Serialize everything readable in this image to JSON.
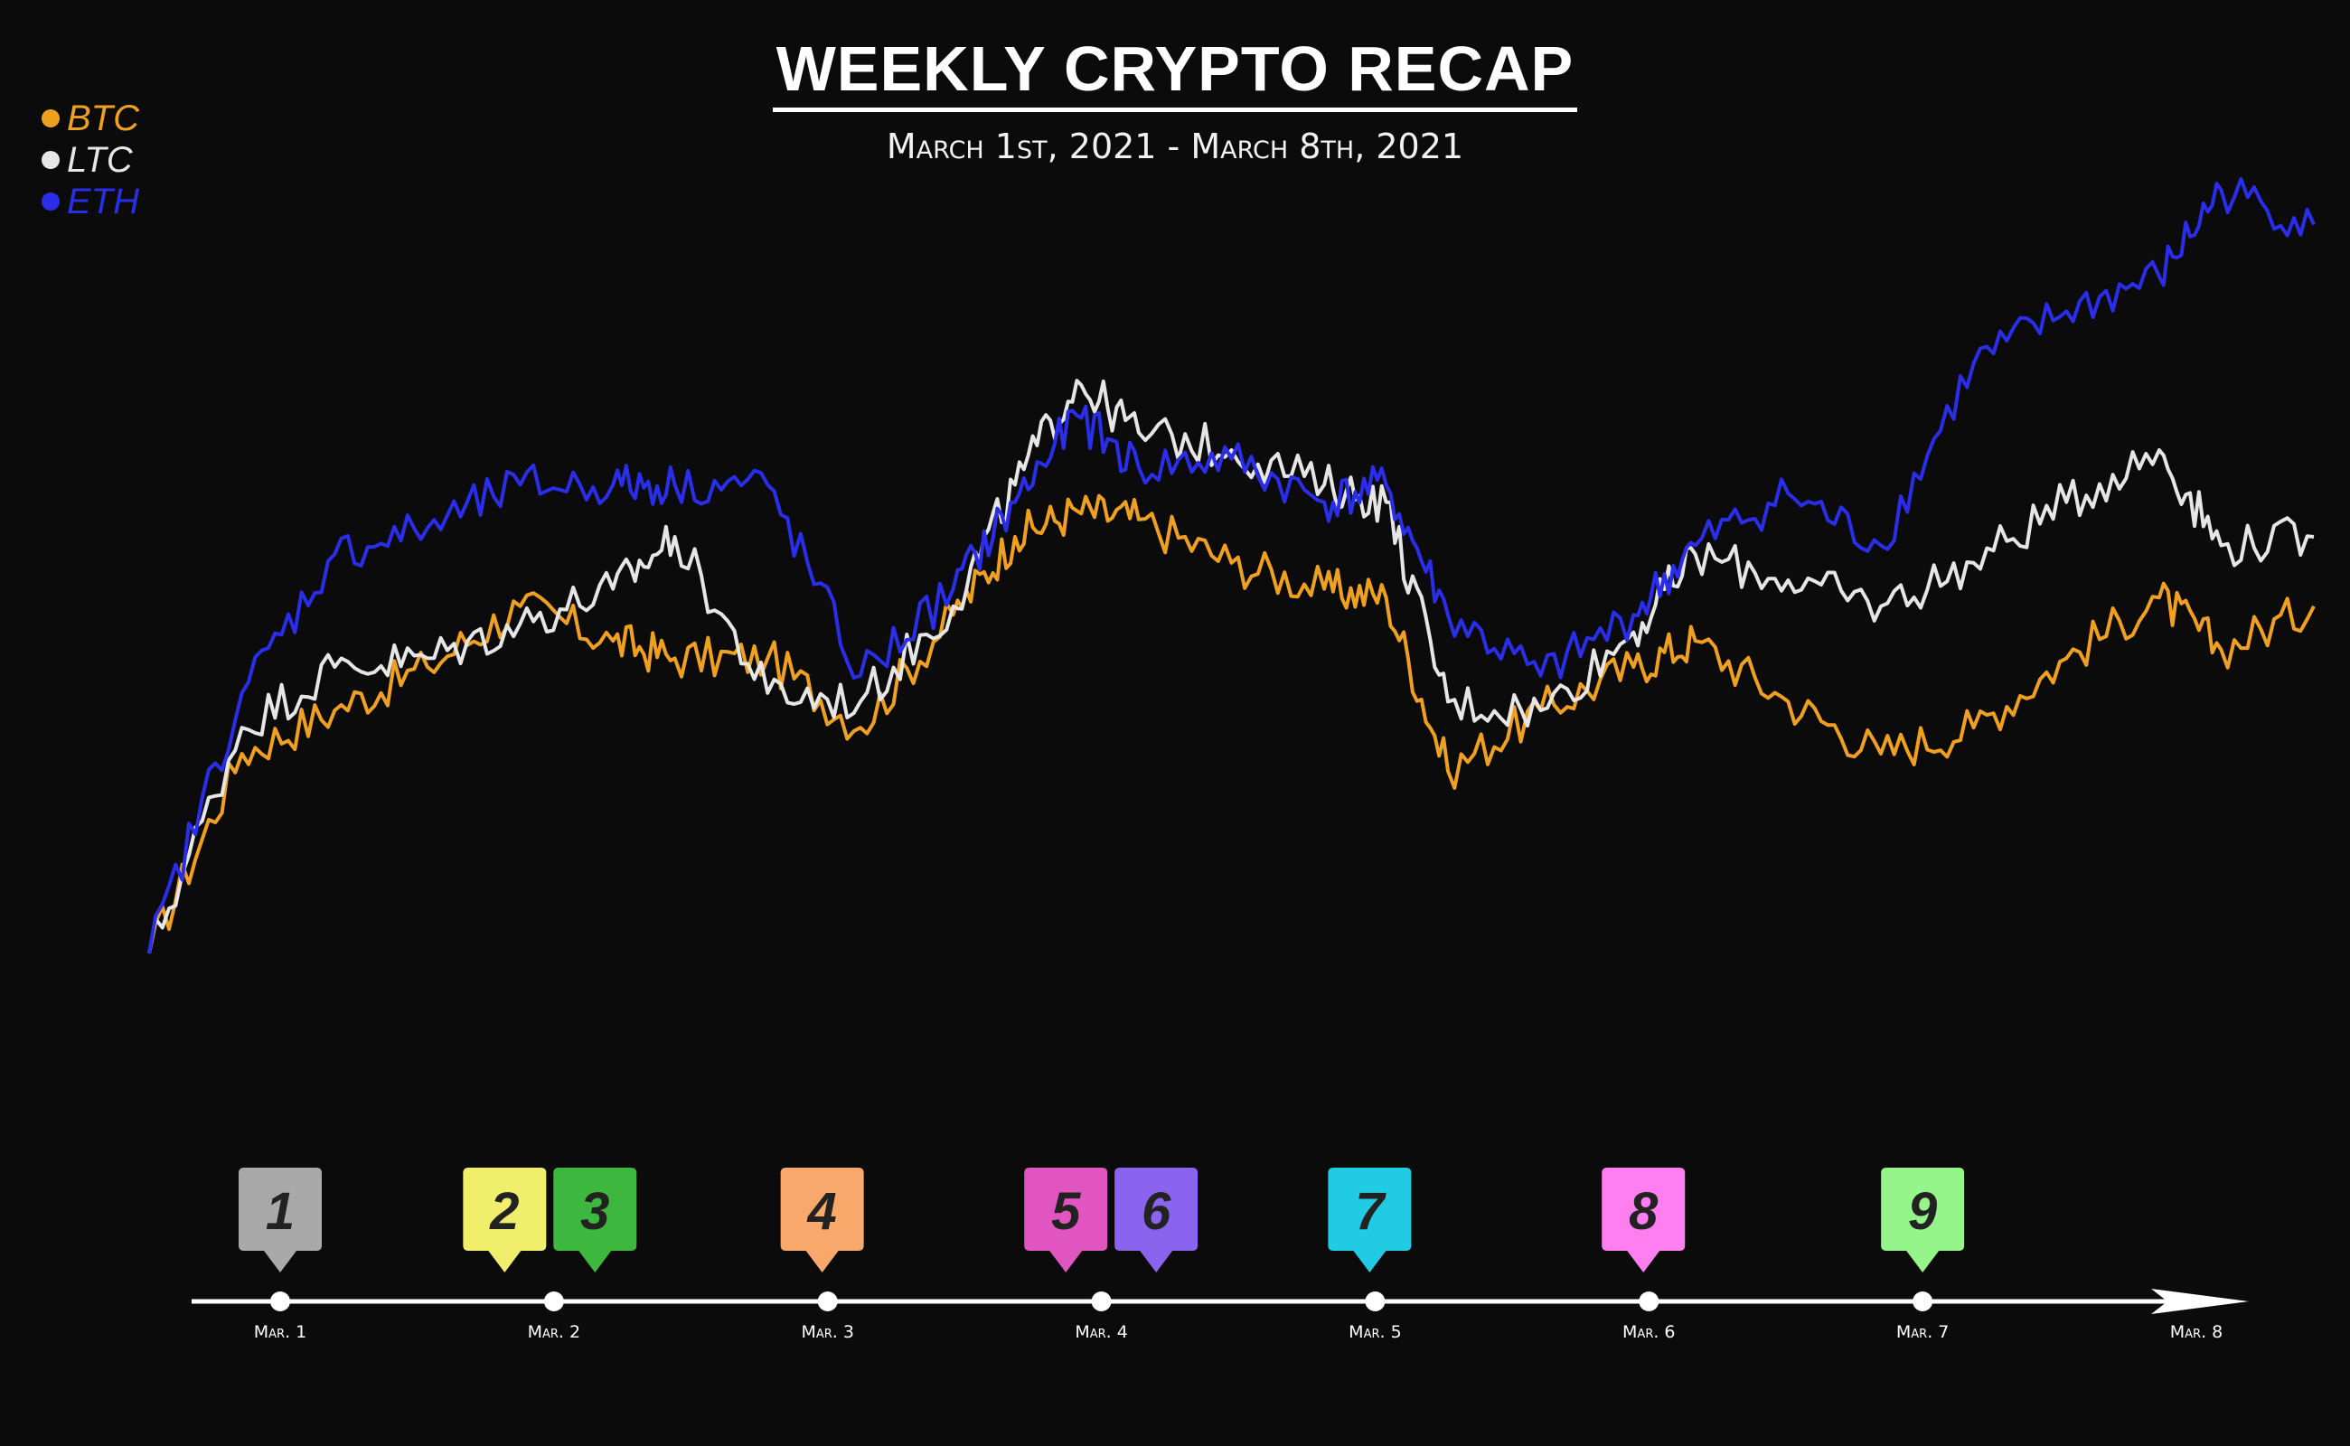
{
  "header": {
    "title": "WEEKLY CRYPTO RECAP",
    "subtitle": "March 1st, 2021 - March 8th, 2021"
  },
  "legend": [
    {
      "label": "BTC",
      "color": "#f0a020"
    },
    {
      "label": "LTC",
      "color": "#e6e6e6"
    },
    {
      "label": "ETH",
      "color": "#2a2ee8"
    }
  ],
  "chart_data": {
    "type": "line",
    "title": "WEEKLY CRYPTO RECAP",
    "subtitle": "March 1st, 2021 - March 8th, 2021",
    "xlabel": "",
    "ylabel": "",
    "grid": false,
    "legend_position": "top-left",
    "x_ticks": [
      "Mar. 1",
      "Mar. 2",
      "Mar. 3",
      "Mar. 4",
      "Mar. 5",
      "Mar. 6",
      "Mar. 7",
      "Mar. 8"
    ],
    "x_range": [
      0,
      7
    ],
    "ylim": [
      0,
      100
    ],
    "series": [
      {
        "name": "BTC",
        "color": "#f0a020",
        "x": [
          0,
          0.3,
          0.6,
          0.9,
          1.2,
          1.5,
          1.7,
          2.0,
          2.3,
          2.6,
          2.8,
          3.0,
          3.2,
          3.5,
          3.8,
          4.0,
          4.2,
          4.5,
          4.8,
          5.0,
          5.3,
          5.6,
          5.9,
          6.2,
          6.5,
          6.7,
          7.0
        ],
        "y": [
          12,
          35,
          40,
          45,
          52,
          48,
          46,
          46,
          38,
          51,
          60,
          63,
          62,
          57,
          54,
          53,
          33,
          40,
          45,
          48,
          41,
          35,
          38,
          46,
          53,
          47,
          52
        ]
      },
      {
        "name": "LTC",
        "color": "#e6e6e6",
        "x": [
          0,
          0.3,
          0.6,
          0.9,
          1.2,
          1.5,
          1.7,
          2.0,
          2.3,
          2.6,
          2.8,
          3.0,
          3.2,
          3.5,
          3.8,
          4.0,
          4.2,
          4.5,
          4.8,
          5.0,
          5.3,
          5.6,
          5.9,
          6.2,
          6.5,
          6.7,
          7.0
        ],
        "y": [
          12,
          38,
          45,
          46,
          50,
          54,
          60,
          42,
          41,
          52,
          66,
          78,
          72,
          70,
          66,
          64,
          41,
          40,
          49,
          58,
          55,
          52,
          57,
          64,
          70,
          59,
          60
        ]
      },
      {
        "name": "ETH",
        "color": "#2a2ee8",
        "x": [
          0,
          0.3,
          0.6,
          0.9,
          1.2,
          1.5,
          1.7,
          2.0,
          2.3,
          2.6,
          2.8,
          3.0,
          3.2,
          3.5,
          3.8,
          4.0,
          4.2,
          4.5,
          4.8,
          5.0,
          5.3,
          5.6,
          5.9,
          6.2,
          6.5,
          6.7,
          7.0
        ],
        "y": [
          12,
          42,
          58,
          61,
          66,
          66,
          66,
          66,
          44,
          54,
          64,
          74,
          68,
          69,
          64,
          66,
          51,
          44,
          51,
          59,
          65,
          59,
          80,
          86,
          90,
          100,
          96
        ]
      }
    ],
    "annotations": [
      {
        "number": "1",
        "date": 0.0,
        "color": "#a9a9a9"
      },
      {
        "number": "2",
        "date": 0.82,
        "color": "#f0ee6a"
      },
      {
        "number": "3",
        "date": 1.15,
        "color": "#3db73d"
      },
      {
        "number": "4",
        "date": 1.98,
        "color": "#f7a86a"
      },
      {
        "number": "5",
        "date": 2.87,
        "color": "#e055c0"
      },
      {
        "number": "6",
        "date": 3.2,
        "color": "#8a63ee"
      },
      {
        "number": "7",
        "date": 3.98,
        "color": "#22cbe4"
      },
      {
        "number": "8",
        "date": 4.98,
        "color": "#ff7ef0"
      },
      {
        "number": "9",
        "date": 6.0,
        "color": "#95f58a"
      }
    ]
  }
}
